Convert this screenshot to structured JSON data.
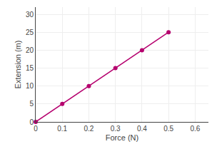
{
  "chart_data": {
    "type": "line",
    "x": [
      0,
      0.1,
      0.2,
      0.3,
      0.4,
      0.5
    ],
    "values": [
      0,
      5,
      10,
      15,
      20,
      25
    ],
    "color": "#b5006e",
    "marker": "circle",
    "xlabel": "Force (N)",
    "ylabel": "Extension (m)",
    "xlim": [
      0,
      0.65
    ],
    "ylim": [
      0,
      32
    ],
    "xticks": [
      0,
      0.1,
      0.2,
      0.3,
      0.4,
      0.5,
      0.6
    ],
    "yticks": [
      0,
      5,
      10,
      15,
      20,
      25,
      30
    ],
    "grid": true
  }
}
